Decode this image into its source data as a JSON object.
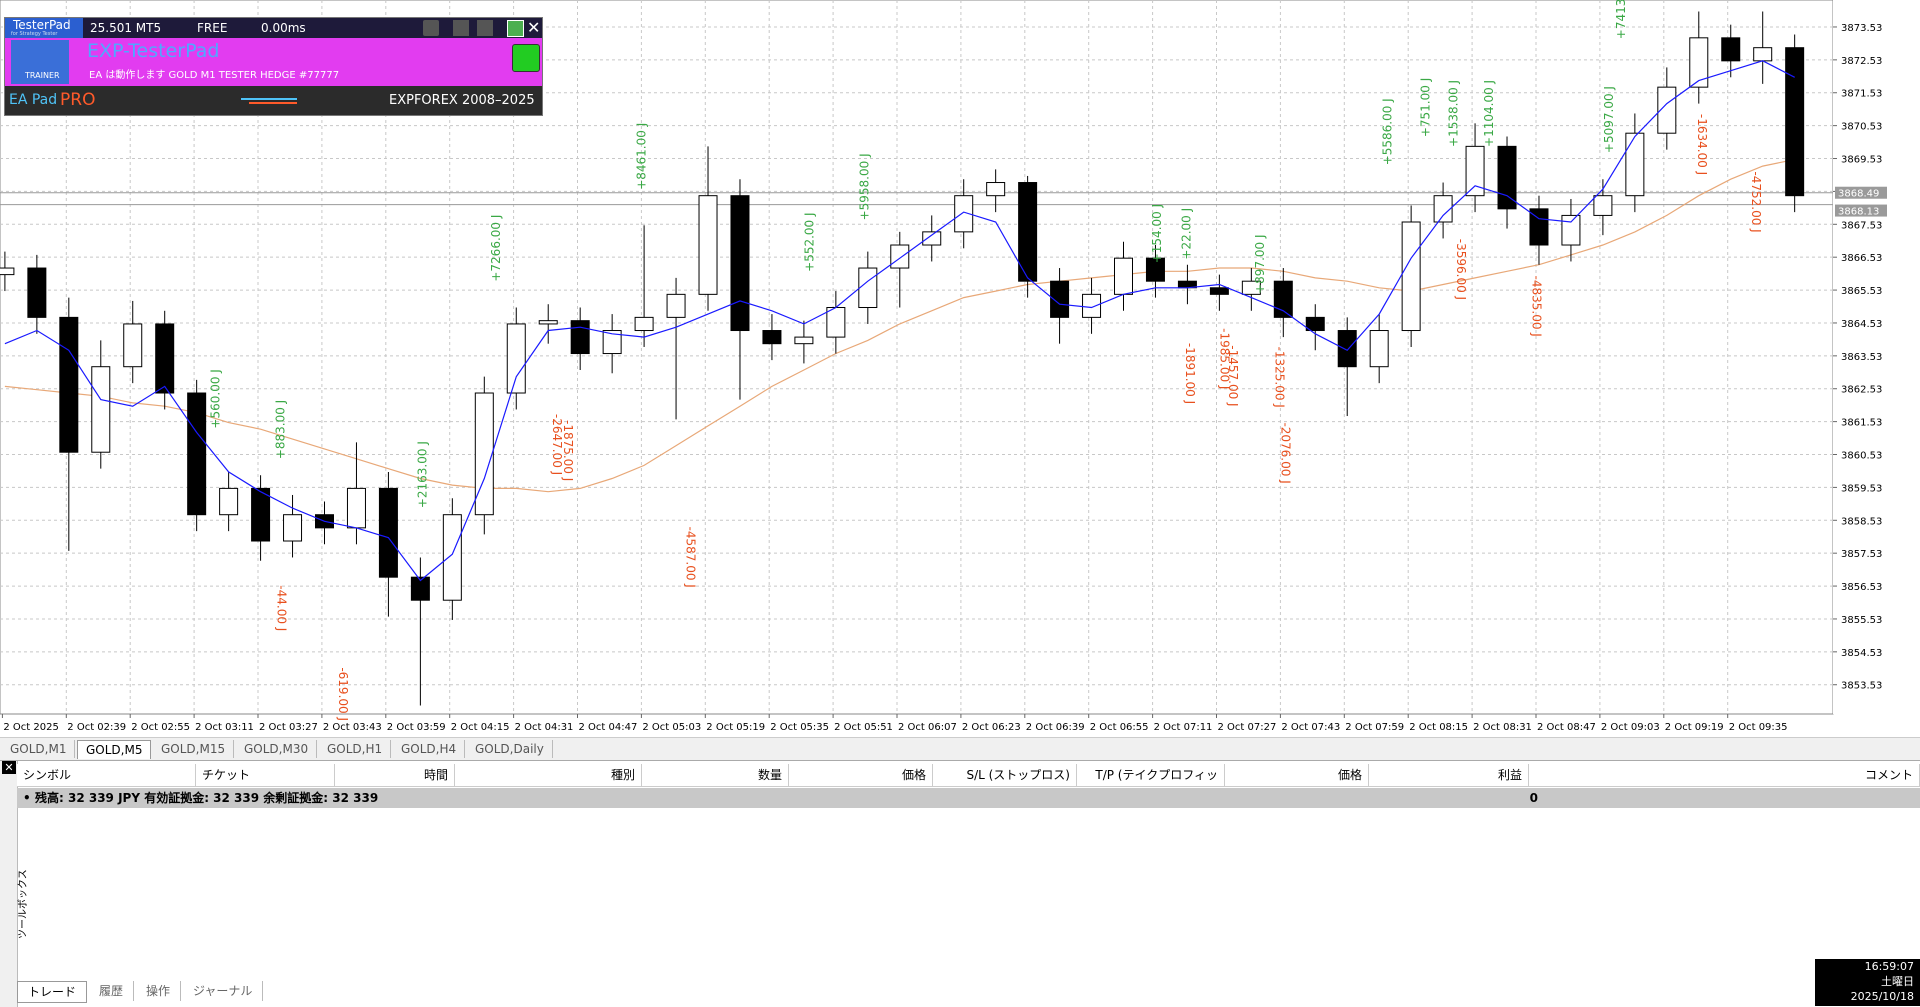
{
  "panel": {
    "logo": "TesterPad",
    "logo_sub": "for Strategy Tester",
    "version": "25.501 MT5",
    "license": "FREE",
    "latency": "0.00ms",
    "name": "EXP-TesterPad",
    "status": "EA は動作します GOLD M1 TESTER HEDGE #77777",
    "badge": "TRAINER",
    "brand_left": "EA Pad",
    "brand_pro": "PRO",
    "copyright": "EXPFOREX 2008–2025"
  },
  "chart_data": {
    "type": "candlestick",
    "time_labels": [
      "2 Oct 2025",
      "2 Oct 02:39",
      "2 Oct 02:55",
      "2 Oct 03:11",
      "2 Oct 03:27",
      "2 Oct 03:43",
      "2 Oct 03:59",
      "2 Oct 04:15",
      "2 Oct 04:31",
      "2 Oct 04:47",
      "2 Oct 05:03",
      "2 Oct 05:19",
      "2 Oct 05:35",
      "2 Oct 05:51",
      "2 Oct 06:07",
      "2 Oct 06:23",
      "2 Oct 06:39",
      "2 Oct 06:55",
      "2 Oct 07:11",
      "2 Oct 07:27",
      "2 Oct 07:43",
      "2 Oct 07:59",
      "2 Oct 08:15",
      "2 Oct 08:31",
      "2 Oct 08:47",
      "2 Oct 09:03",
      "2 Oct 09:19",
      "2 Oct 09:35"
    ],
    "open": [
      3866.0,
      3866.2,
      3864.7,
      3860.6,
      3863.2,
      3864.5,
      3862.4,
      3858.7,
      3859.5,
      3857.9,
      3858.7,
      3858.3,
      3859.5,
      3856.8,
      3856.1,
      3858.7,
      3862.4,
      3864.5,
      3864.6,
      3863.6,
      3864.3,
      3864.7,
      3865.4,
      3868.4,
      3864.3,
      3863.9,
      3864.1,
      3865.0,
      3866.2,
      3866.9,
      3867.3,
      3868.4,
      3868.8,
      3865.8,
      3864.7,
      3865.4,
      3866.5,
      3865.8,
      3865.6,
      3865.4,
      3865.8,
      3864.7,
      3864.3,
      3863.2,
      3864.3,
      3867.6,
      3868.4,
      3869.9,
      3868.0,
      3866.9,
      3867.8,
      3868.4,
      3870.3,
      3871.7,
      3873.2,
      3872.5,
      3872.9
    ],
    "high": [
      3866.7,
      3866.6,
      3865.3,
      3864.0,
      3865.2,
      3864.9,
      3862.8,
      3860.0,
      3859.9,
      3859.3,
      3859.1,
      3860.9,
      3860.0,
      3857.4,
      3859.2,
      3862.9,
      3865.0,
      3865.1,
      3865.0,
      3864.8,
      3867.5,
      3865.9,
      3869.9,
      3868.9,
      3864.8,
      3864.6,
      3865.5,
      3866.7,
      3867.3,
      3867.8,
      3868.9,
      3869.2,
      3869.0,
      3866.2,
      3865.9,
      3867.0,
      3866.9,
      3866.3,
      3866.0,
      3866.2,
      3866.2,
      3865.1,
      3864.7,
      3864.8,
      3868.1,
      3868.8,
      3870.6,
      3870.2,
      3868.4,
      3868.3,
      3868.9,
      3870.9,
      3872.3,
      3874.0,
      3873.6,
      3874.0,
      3873.3
    ],
    "low": [
      3865.5,
      3864.2,
      3857.6,
      3860.1,
      3862.7,
      3861.9,
      3858.2,
      3858.2,
      3857.3,
      3857.4,
      3857.8,
      3857.8,
      3855.6,
      3852.9,
      3855.5,
      3858.1,
      3861.9,
      3863.9,
      3863.1,
      3863.0,
      3863.8,
      3861.6,
      3864.9,
      3862.2,
      3863.4,
      3863.3,
      3863.6,
      3864.5,
      3865.0,
      3866.4,
      3866.8,
      3867.9,
      3865.3,
      3863.9,
      3864.2,
      3864.9,
      3865.3,
      3865.1,
      3864.9,
      3864.9,
      3864.1,
      3863.7,
      3861.7,
      3862.7,
      3863.8,
      3867.1,
      3867.9,
      3867.4,
      3866.3,
      3866.4,
      3867.2,
      3867.9,
      3869.8,
      3871.2,
      3872.0,
      3871.8,
      3867.9
    ],
    "close": [
      3866.2,
      3864.7,
      3860.6,
      3863.2,
      3864.5,
      3862.4,
      3858.7,
      3859.5,
      3857.9,
      3858.7,
      3858.3,
      3859.5,
      3856.8,
      3856.1,
      3858.7,
      3862.4,
      3864.5,
      3864.6,
      3863.6,
      3864.3,
      3864.7,
      3865.4,
      3868.4,
      3864.3,
      3863.9,
      3864.1,
      3865.0,
      3866.2,
      3866.9,
      3867.3,
      3868.4,
      3868.8,
      3865.8,
      3864.7,
      3865.4,
      3866.5,
      3865.8,
      3865.6,
      3865.4,
      3865.8,
      3864.7,
      3864.3,
      3863.2,
      3864.3,
      3867.6,
      3868.4,
      3869.9,
      3868.0,
      3866.9,
      3867.8,
      3868.4,
      3870.3,
      3871.7,
      3873.2,
      3872.5,
      3872.9,
      3868.4
    ],
    "ma_fast": {
      "color": "#1a1aff",
      "values": [
        3863.9,
        3864.3,
        3863.7,
        3862.2,
        3862.0,
        3862.6,
        3861.2,
        3860.0,
        3859.4,
        3858.9,
        3858.5,
        3858.3,
        3858.0,
        3856.7,
        3857.5,
        3859.8,
        3862.9,
        3864.3,
        3864.4,
        3864.2,
        3864.1,
        3864.4,
        3864.8,
        3865.2,
        3864.9,
        3864.5,
        3865.0,
        3865.8,
        3866.5,
        3867.2,
        3867.9,
        3867.6,
        3865.9,
        3865.1,
        3865.0,
        3865.4,
        3865.6,
        3865.6,
        3865.7,
        3865.3,
        3864.9,
        3864.2,
        3863.7,
        3864.8,
        3866.5,
        3867.8,
        3868.7,
        3868.4,
        3867.7,
        3867.6,
        3868.6,
        3870.2,
        3871.2,
        3871.9,
        3872.2,
        3872.5,
        3872.0
      ]
    },
    "ma_slow": {
      "color": "#e8a878",
      "values": [
        3862.6,
        3862.5,
        3862.4,
        3862.3,
        3862.1,
        3862.0,
        3861.8,
        3861.5,
        3861.3,
        3861.0,
        3860.7,
        3860.4,
        3860.1,
        3859.8,
        3859.6,
        3859.5,
        3859.5,
        3859.4,
        3859.5,
        3859.8,
        3860.2,
        3860.8,
        3861.4,
        3862.0,
        3862.6,
        3863.1,
        3863.6,
        3864.0,
        3864.5,
        3864.9,
        3865.3,
        3865.5,
        3865.7,
        3865.8,
        3865.9,
        3866.0,
        3866.1,
        3866.1,
        3866.2,
        3866.2,
        3866.1,
        3865.9,
        3865.8,
        3865.6,
        3865.5,
        3865.7,
        3865.9,
        3866.1,
        3866.3,
        3866.6,
        3866.9,
        3867.3,
        3867.8,
        3868.4,
        3868.9,
        3869.3,
        3869.5
      ]
    },
    "ylim": [
      3852.64,
      3874.35
    ],
    "yticks": [
      3873.53,
      3872.53,
      3871.53,
      3870.53,
      3869.53,
      3868.53,
      3867.53,
      3866.53,
      3865.53,
      3864.53,
      3863.53,
      3862.53,
      3861.53,
      3860.53,
      3859.53,
      3858.53,
      3857.53,
      3856.53,
      3855.53,
      3854.53,
      3853.53
    ],
    "price_tags": [
      3868.49,
      3868.13
    ],
    "grid": true,
    "bull_color": "#ffffff",
    "bear_color": "#000000",
    "profit_color": "#3aa845",
    "loss_color": "#e8501e",
    "trade_labels": [
      {
        "text": "+560.00 J",
        "kind": "profit"
      },
      {
        "text": "+883.00 J",
        "kind": "profit"
      },
      {
        "text": "+2163.00 J",
        "kind": "profit"
      },
      {
        "text": "+7266.00 J",
        "kind": "profit"
      },
      {
        "text": "+8461.00 J",
        "kind": "profit"
      },
      {
        "text": "+552.00 J",
        "kind": "profit"
      },
      {
        "text": "+5958.00 J",
        "kind": "profit"
      },
      {
        "text": "+154.00 J",
        "kind": "profit"
      },
      {
        "text": "+22.00 J",
        "kind": "profit"
      },
      {
        "text": "+897.00 J",
        "kind": "profit"
      },
      {
        "text": "+5586.00 J",
        "kind": "profit"
      },
      {
        "text": "+751.00 J",
        "kind": "profit"
      },
      {
        "text": "+1538.00 J",
        "kind": "profit"
      },
      {
        "text": "+1104.00 J",
        "kind": "profit"
      },
      {
        "text": "+5097.00 J",
        "kind": "profit"
      },
      {
        "text": "+7413",
        "kind": "profit"
      },
      {
        "text": "-44.00 J",
        "kind": "loss"
      },
      {
        "text": "-619.00 J",
        "kind": "loss"
      },
      {
        "text": "-2647.00 J",
        "kind": "loss"
      },
      {
        "text": "-1875.00 J",
        "kind": "loss"
      },
      {
        "text": "-4587.00 J",
        "kind": "loss"
      },
      {
        "text": "-1891.00 J",
        "kind": "loss"
      },
      {
        "text": "-1985.00 J",
        "kind": "loss"
      },
      {
        "text": "-1457.00 J",
        "kind": "loss"
      },
      {
        "text": "-1325.00 J",
        "kind": "loss"
      },
      {
        "text": "-2076.00 J",
        "kind": "loss"
      },
      {
        "text": "-3596.00 J",
        "kind": "loss"
      },
      {
        "text": "-4835.00 J",
        "kind": "loss"
      },
      {
        "text": "-1634.00 J",
        "kind": "loss"
      },
      {
        "text": "-4752.00 J",
        "kind": "loss"
      }
    ]
  },
  "chart_tabs": [
    "GOLD,M1",
    "GOLD,M5",
    "GOLD,M15",
    "GOLD,M30",
    "GOLD,H1",
    "GOLD,H4",
    "GOLD,Daily"
  ],
  "active_tab": 1,
  "toolbox": {
    "columns": [
      "シンボル",
      "チケット",
      "時間",
      "種別",
      "数量",
      "価格",
      "S/L (ストップロス)",
      "T/P (テイクプロフィット)",
      "価格",
      "利益",
      "コメント"
    ],
    "balance": "残高: 32 339 JPY  有効証拠金: 32 339  余剰証拠金: 32 339",
    "profit": "0",
    "bottom_tabs": [
      "トレード",
      "履歴",
      "操作",
      "ジャーナル"
    ],
    "side_title": "ツールボックス"
  },
  "clock": {
    "time": "16:59:07",
    "day": "土曜日",
    "date": "2025/10/18"
  }
}
